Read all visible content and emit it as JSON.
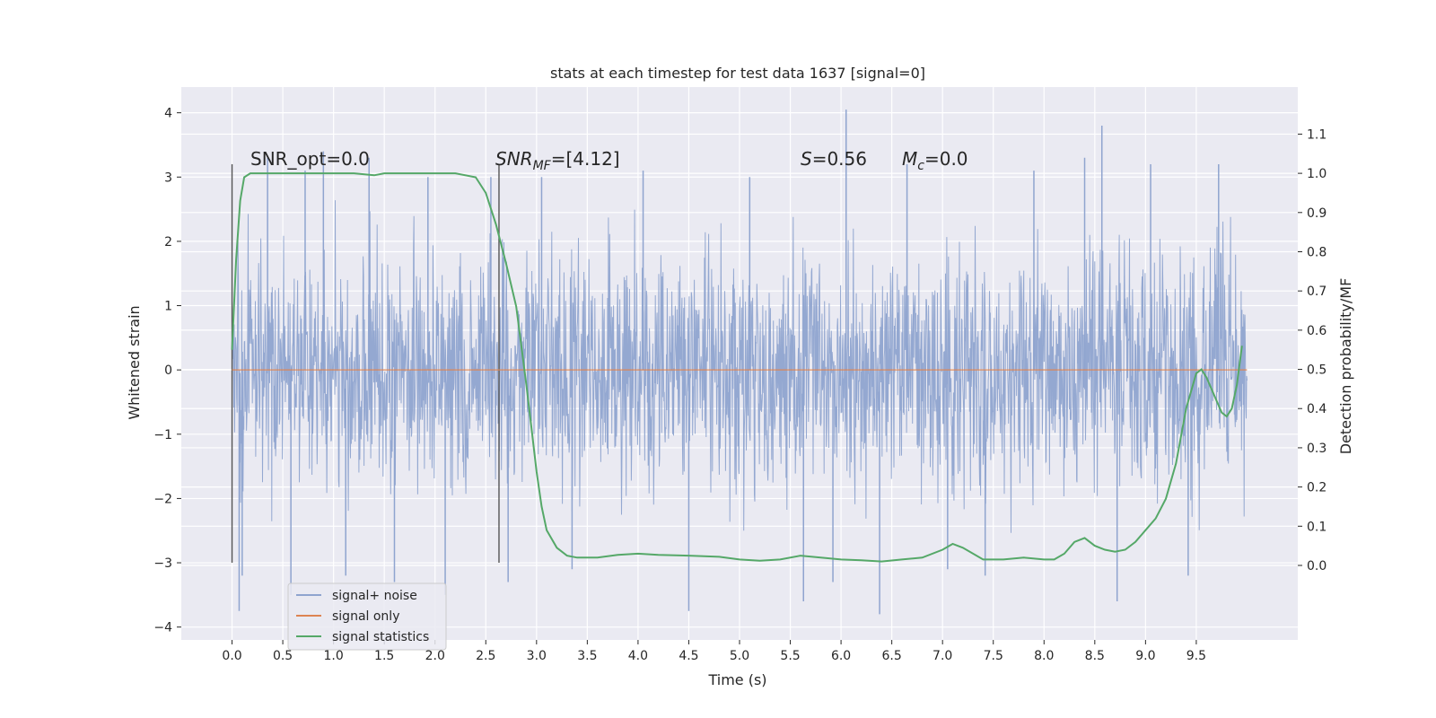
{
  "chart_data": {
    "type": "line",
    "title": "stats at each timestep for test data 1637 [signal=0]",
    "xlabel": "Time (s)",
    "ylabel_left": "Whitened strain",
    "ylabel_right": "Detection probability/MF",
    "xlim": [
      -0.5,
      10.5
    ],
    "ylim_left": [
      -4.2,
      4.4
    ],
    "ylim_right": [
      -0.19,
      1.22
    ],
    "xticks": [
      0.0,
      0.5,
      1.0,
      1.5,
      2.0,
      2.5,
      3.0,
      3.5,
      4.0,
      4.5,
      5.0,
      5.5,
      6.0,
      6.5,
      7.0,
      7.5,
      8.0,
      8.5,
      9.0,
      9.5
    ],
    "yticks_left": [
      -4,
      -3,
      -2,
      -1,
      0,
      1,
      2,
      3,
      4
    ],
    "yticks_right": [
      0.0,
      0.1,
      0.2,
      0.3,
      0.4,
      0.5,
      0.6,
      0.7,
      0.8,
      0.9,
      1.0,
      1.1
    ],
    "grid": true,
    "legend_position": "lower-left",
    "colors": {
      "noise": "#8fa4cf",
      "signal": "#dd8452",
      "stats": "#55a868",
      "marker": "#555555",
      "panel": "#eaeaf2",
      "grid": "#ffffff"
    },
    "legend": [
      "signal+ noise",
      "signal only",
      "signal statistics"
    ],
    "annotations": {
      "snr_opt": "SNR_opt=0.0",
      "snr_mf_var": "SNR",
      "snr_mf_sub": "MF",
      "snr_mf_val": "=[4.12]",
      "s_var": "S",
      "s_val": "=0.56",
      "mc_var": "M",
      "mc_sub": "c",
      "mc_val": "=0.0"
    },
    "markers_x": [
      0.0,
      2.63
    ],
    "marker_ylim": [
      -3.0,
      3.2
    ],
    "noise": {
      "x_range": [
        0.0,
        10.0
      ],
      "typical_abs_max": 2.2,
      "spike_x": [
        0.07,
        0.1,
        0.35,
        0.58,
        0.72,
        0.9,
        1.12,
        1.35,
        1.6,
        1.93,
        2.1,
        2.55,
        2.72,
        3.05,
        3.35,
        4.05,
        4.5,
        5.1,
        5.63,
        5.92,
        6.05,
        6.38,
        6.65,
        7.05,
        7.42,
        7.9,
        8.4,
        8.57,
        8.72,
        9.05,
        9.42,
        9.72
      ],
      "spike_y": [
        -3.75,
        -3.2,
        3.3,
        -3.5,
        3.1,
        3.4,
        -3.2,
        3.3,
        -3.3,
        3.0,
        -3.5,
        3.0,
        -3.3,
        3.0,
        -3.1,
        3.1,
        -3.75,
        3.0,
        -3.6,
        -3.3,
        4.05,
        -3.8,
        3.2,
        -3.1,
        -3.2,
        3.1,
        3.3,
        3.8,
        -3.6,
        3.2,
        -3.2,
        3.2
      ]
    },
    "signal_only": {
      "x": [
        0.0,
        10.0
      ],
      "y": [
        0.0,
        0.0
      ]
    },
    "signal_statistics": {
      "x": [
        0.0,
        0.04,
        0.08,
        0.12,
        0.18,
        0.3,
        0.5,
        0.8,
        1.0,
        1.2,
        1.4,
        1.5,
        1.8,
        2.0,
        2.2,
        2.4,
        2.5,
        2.6,
        2.7,
        2.8,
        2.9,
        2.95,
        3.0,
        3.05,
        3.1,
        3.2,
        3.3,
        3.4,
        3.5,
        3.6,
        3.8,
        4.0,
        4.2,
        4.5,
        4.8,
        5.0,
        5.2,
        5.4,
        5.6,
        5.8,
        6.0,
        6.2,
        6.4,
        6.6,
        6.8,
        7.0,
        7.1,
        7.2,
        7.4,
        7.6,
        7.8,
        8.0,
        8.1,
        8.2,
        8.3,
        8.4,
        8.5,
        8.6,
        8.7,
        8.8,
        8.9,
        9.0,
        9.1,
        9.2,
        9.3,
        9.4,
        9.5,
        9.55,
        9.6,
        9.7,
        9.75,
        9.8,
        9.85,
        9.9,
        9.95
      ],
      "y": [
        0.55,
        0.78,
        0.93,
        0.99,
        1.0,
        1.0,
        1.0,
        1.0,
        1.0,
        1.0,
        0.995,
        1.0,
        1.0,
        1.0,
        1.0,
        0.99,
        0.95,
        0.87,
        0.77,
        0.66,
        0.46,
        0.35,
        0.24,
        0.15,
        0.09,
        0.045,
        0.025,
        0.02,
        0.02,
        0.02,
        0.027,
        0.03,
        0.027,
        0.025,
        0.022,
        0.015,
        0.012,
        0.015,
        0.025,
        0.02,
        0.015,
        0.013,
        0.01,
        0.015,
        0.02,
        0.04,
        0.055,
        0.045,
        0.015,
        0.015,
        0.02,
        0.015,
        0.015,
        0.03,
        0.06,
        0.07,
        0.05,
        0.04,
        0.035,
        0.04,
        0.06,
        0.09,
        0.12,
        0.17,
        0.26,
        0.4,
        0.49,
        0.5,
        0.48,
        0.42,
        0.39,
        0.38,
        0.4,
        0.46,
        0.56
      ]
    }
  }
}
